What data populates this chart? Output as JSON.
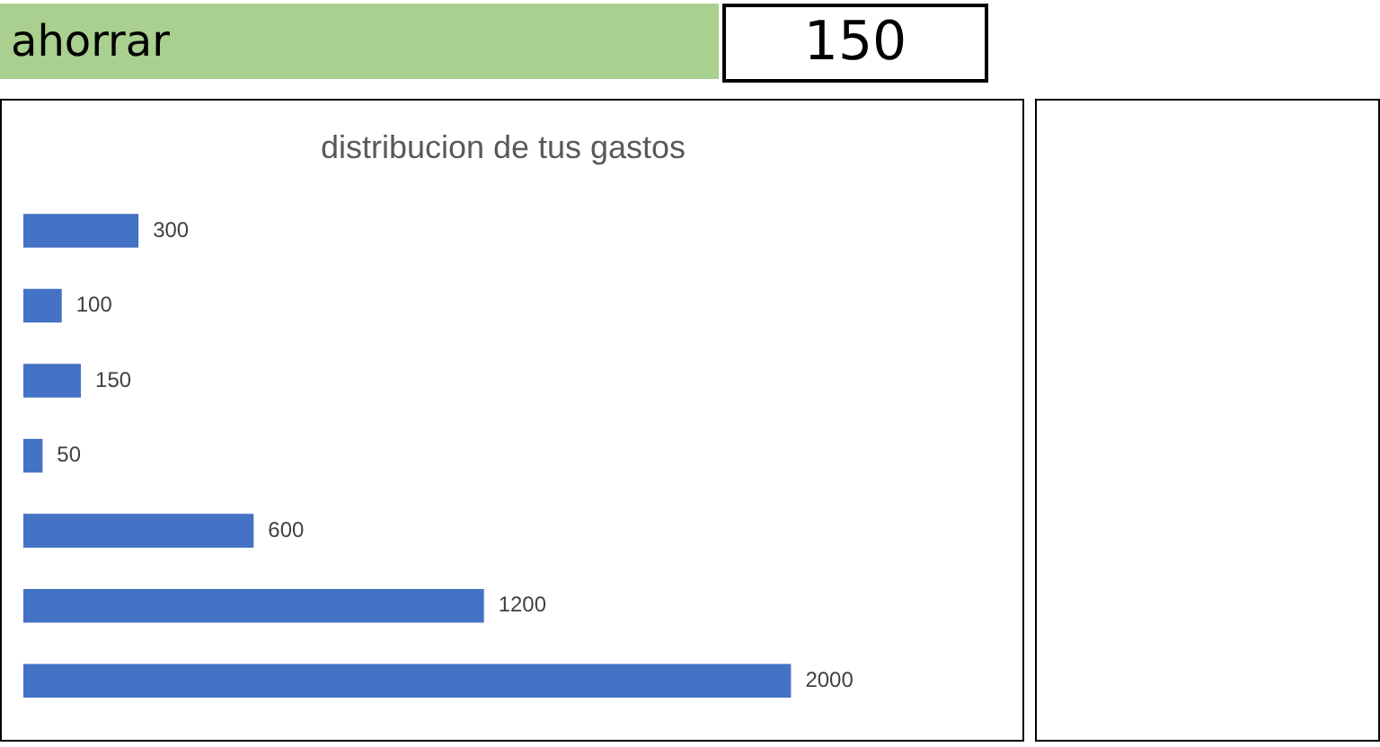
{
  "chart_data": {
    "type": "bar",
    "orientation": "horizontal",
    "title": "distribucion de tus gastos",
    "categories": [
      null,
      null,
      null,
      null,
      null,
      null,
      null
    ],
    "values": [
      300,
      100,
      150,
      50,
      600,
      1200,
      2000
    ],
    "color": "#4472c4",
    "data_labels": true,
    "legend": false,
    "annotations": [
      "ahorrar",
      "150"
    ]
  }
}
